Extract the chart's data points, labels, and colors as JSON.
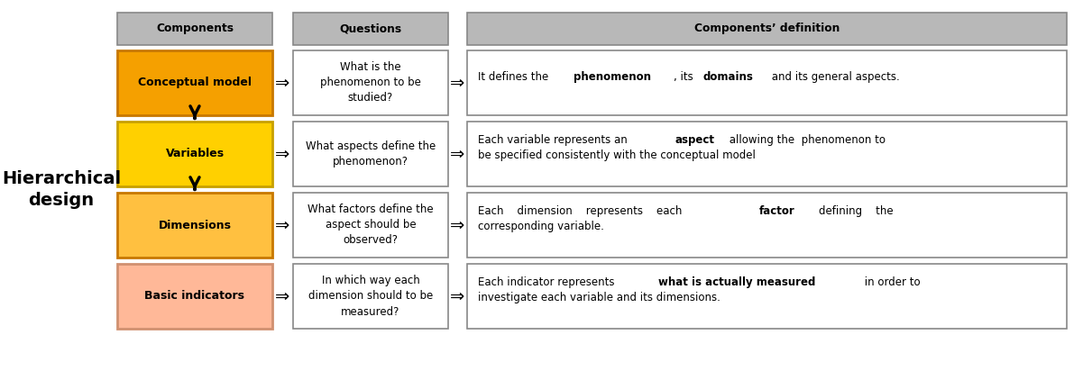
{
  "title_left": "Hierarchical\ndesign",
  "headers": [
    "Components",
    "Questions",
    "Components’ definition"
  ],
  "header_bg": "#b8b8b8",
  "rows": [
    {
      "component": "Conceptual model",
      "component_bg": "#f5a000",
      "component_border": "#c87800",
      "question": "What is the\nphenomenon to be\nstudied?",
      "definition_lines": [
        [
          {
            "text": "It defines the ",
            "bold": false
          },
          {
            "text": "phenomenon",
            "bold": true
          },
          {
            "text": ", its ",
            "bold": false
          },
          {
            "text": "domains",
            "bold": true
          },
          {
            "text": " and its general aspects.",
            "bold": false
          }
        ]
      ],
      "arrow_down": true
    },
    {
      "component": "Variables",
      "component_bg": "#ffd000",
      "component_border": "#c8a000",
      "question": "What aspects define the\nphenomenon?",
      "definition_lines": [
        [
          {
            "text": "Each variable represents an ",
            "bold": false
          },
          {
            "text": "aspect",
            "bold": true
          },
          {
            "text": " allowing the  phenomenon to",
            "bold": false
          }
        ],
        [
          {
            "text": "be specified consistently with the conceptual model",
            "bold": false
          }
        ]
      ],
      "arrow_down": true
    },
    {
      "component": "Dimensions",
      "component_bg": "#ffc040",
      "component_border": "#c87800",
      "question": "What factors define the\naspect should be\nobserved?",
      "definition_lines": [
        [
          {
            "text": "Each    dimension    represents    each    ",
            "bold": false
          },
          {
            "text": "factor",
            "bold": true
          },
          {
            "text": "    defining    the",
            "bold": false
          }
        ],
        [
          {
            "text": "corresponding variable.",
            "bold": false
          }
        ]
      ],
      "arrow_down": false
    },
    {
      "component": "Basic indicators",
      "component_bg": "#ffb898",
      "component_border": "#d09070",
      "question": "In which way each\ndimension should to be\nmeasured?",
      "definition_lines": [
        [
          {
            "text": "Each indicator represents ",
            "bold": false
          },
          {
            "text": "what is actually measured",
            "bold": true
          },
          {
            "text": " in order to",
            "bold": false
          }
        ],
        [
          {
            "text": "investigate each variable and its dimensions.",
            "bold": false
          }
        ]
      ],
      "arrow_down": false
    }
  ],
  "background_color": "#ffffff",
  "border_color": "#888888"
}
